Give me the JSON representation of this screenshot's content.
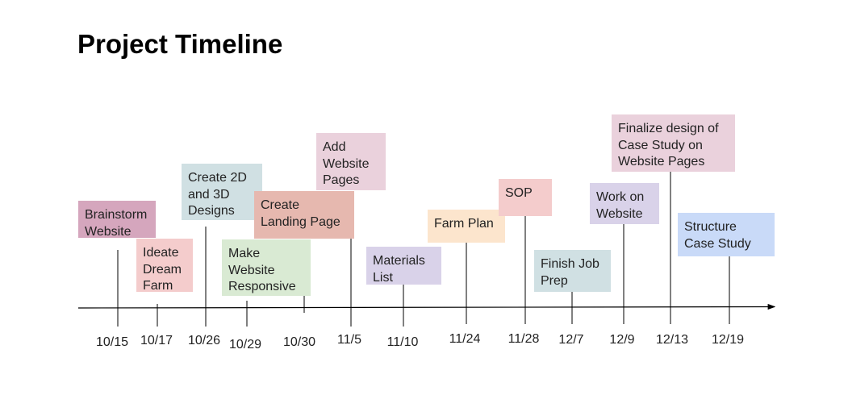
{
  "title": "Project Timeline",
  "events": [
    {
      "date": "10/15",
      "label": "Brainstorm\nWebsite",
      "color": "#d5a6bd"
    },
    {
      "date": "10/17",
      "label": "Ideate\nDream\nFarm",
      "color": "#f4cccc"
    },
    {
      "date": "10/26",
      "label": "Create 2D\nand 3D\nDesigns",
      "color": "#d0e0e3"
    },
    {
      "date": "10/29",
      "label": "Make\nWebsite\nResponsive",
      "color": "#d9ead3"
    },
    {
      "date": "10/30",
      "label": "Create\nLanding Page",
      "color": "#e6b8af"
    },
    {
      "date": "11/5",
      "label": "Add\nWebsite\nPages",
      "color": "#ead1dc"
    },
    {
      "date": "11/10",
      "label": "Materials\nList",
      "color": "#d9d2e9"
    },
    {
      "date": "11/24",
      "label": "Farm Plan",
      "color": "#fce5cd"
    },
    {
      "date": "11/28",
      "label": "SOP",
      "color": "#f4cccc"
    },
    {
      "date": "12/7",
      "label": "Finish Job\nPrep",
      "color": "#d0e0e3"
    },
    {
      "date": "12/9",
      "label": "Work on\nWebsite",
      "color": "#d9d2e9"
    },
    {
      "date": "12/13",
      "label": "Finalize design of\nCase Study on\nWebsite Pages",
      "color": "#ead1dc"
    },
    {
      "date": "12/19",
      "label": "Structure\nCase Study",
      "color": "#c9daf8"
    }
  ]
}
